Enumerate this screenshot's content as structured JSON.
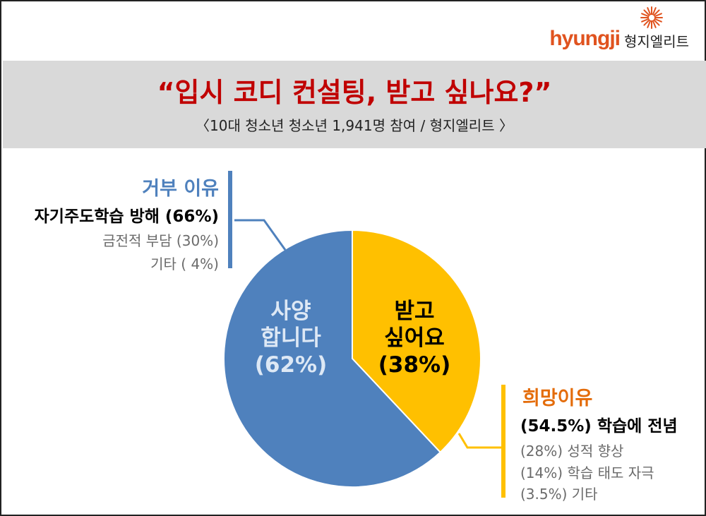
{
  "header": {
    "logo_brand": "hyungji",
    "logo_kr": "형지엘리트",
    "title": "“입시 코디 컨설팅, 받고 싶나요?”",
    "subtitle": "〈10대 청소년 청소년 1,941명 참여 / 형지엘리트 〉"
  },
  "colors": {
    "title": "#c00000",
    "blue_slice": "#4f81bd",
    "gold_slice": "#ffc000",
    "brand": "#e0531f",
    "gold_heading": "#e46c0a"
  },
  "chart_data": {
    "type": "pie",
    "title": "",
    "slices": [
      {
        "label_line1": "받고",
        "label_line2": "싶어요",
        "percent_label": "(38%)",
        "value": 38,
        "color": "#ffc000"
      },
      {
        "label_line1": "사양",
        "label_line2": "합니다",
        "percent_label": "(62%)",
        "value": 62,
        "color": "#4f81bd"
      }
    ],
    "start_angle_deg": 0,
    "direction": "clockwise"
  },
  "reject_reasons": {
    "heading": "거부 이유",
    "main": "자기주도학습 방해 (66%)",
    "items": [
      "금전적 부담 (30%)",
      "기타 (  4%)"
    ]
  },
  "want_reasons": {
    "heading": "희망이유",
    "main": "(54.5%) 학습에 전념",
    "items": [
      "(28%) 성적 향상",
      "(14%) 학습 태도 자극",
      "(3.5%) 기타"
    ]
  }
}
